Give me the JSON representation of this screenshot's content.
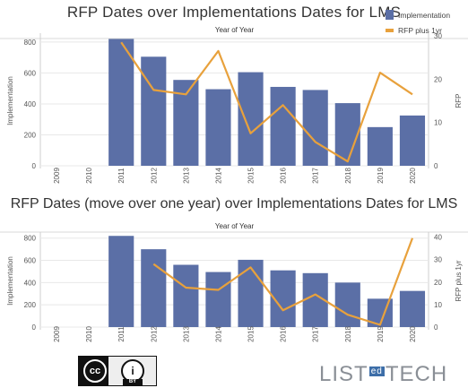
{
  "colors": {
    "bar": "#5b6fa6",
    "line": "#e8a13c",
    "grid": "#e8e8e8",
    "axis_text": "#555555"
  },
  "legend": {
    "bar_label": "Implementation",
    "line_label": "RFP plus 1yr"
  },
  "footer": {
    "license": "CC BY",
    "logo_text_left": "LIST",
    "logo_text_mid": "ed",
    "logo_text_right": "TECH"
  },
  "chart_data": [
    {
      "type": "bar",
      "title": "RFP Dates over Implementations Dates for LMS",
      "xlabel": "Year of Year",
      "ylabel": "Implementation",
      "y2label": "RFP",
      "categories": [
        "2009",
        "2010",
        "2011",
        "2012",
        "2013",
        "2014",
        "2015",
        "2016",
        "2017",
        "2018",
        "2019",
        "2020"
      ],
      "ylim": [
        0,
        840
      ],
      "y2lim": [
        0,
        30
      ],
      "yticks": [
        0,
        200,
        400,
        600,
        800
      ],
      "y2ticks": [
        0,
        10,
        20,
        30
      ],
      "series": [
        {
          "name": "Implementation",
          "axis": "left",
          "type": "bar",
          "values": [
            null,
            null,
            820,
            705,
            555,
            495,
            605,
            510,
            490,
            405,
            250,
            325
          ]
        },
        {
          "name": "RFP plus 1yr",
          "axis": "right",
          "type": "line",
          "values": [
            null,
            null,
            28.5,
            17.5,
            16.5,
            26.5,
            7.5,
            14.0,
            5.5,
            1.0,
            21.5,
            16.5
          ]
        }
      ]
    },
    {
      "type": "bar",
      "title": "RFP Dates (move over one year) over Implementations Dates for LMS",
      "xlabel": "Year of Year",
      "ylabel": "Implementation",
      "y2label": "RFP plus 1yr",
      "categories": [
        "2009",
        "2010",
        "2011",
        "2012",
        "2013",
        "2014",
        "2015",
        "2016",
        "2017",
        "2018",
        "2019",
        "2020"
      ],
      "ylim": [
        0,
        830
      ],
      "y2lim": [
        0,
        41
      ],
      "yticks": [
        0,
        200,
        400,
        600,
        800
      ],
      "y2ticks": [
        0,
        10,
        20,
        30,
        40
      ],
      "series": [
        {
          "name": "Implementation",
          "axis": "left",
          "type": "bar",
          "values": [
            null,
            null,
            820,
            700,
            560,
            495,
            605,
            510,
            485,
            400,
            255,
            325
          ]
        },
        {
          "name": "RFP plus 1yr",
          "axis": "right",
          "type": "line",
          "values": [
            null,
            null,
            null,
            28,
            17.5,
            16.5,
            26.5,
            7.5,
            14.5,
            5.5,
            1.0,
            39.5
          ]
        }
      ]
    }
  ]
}
